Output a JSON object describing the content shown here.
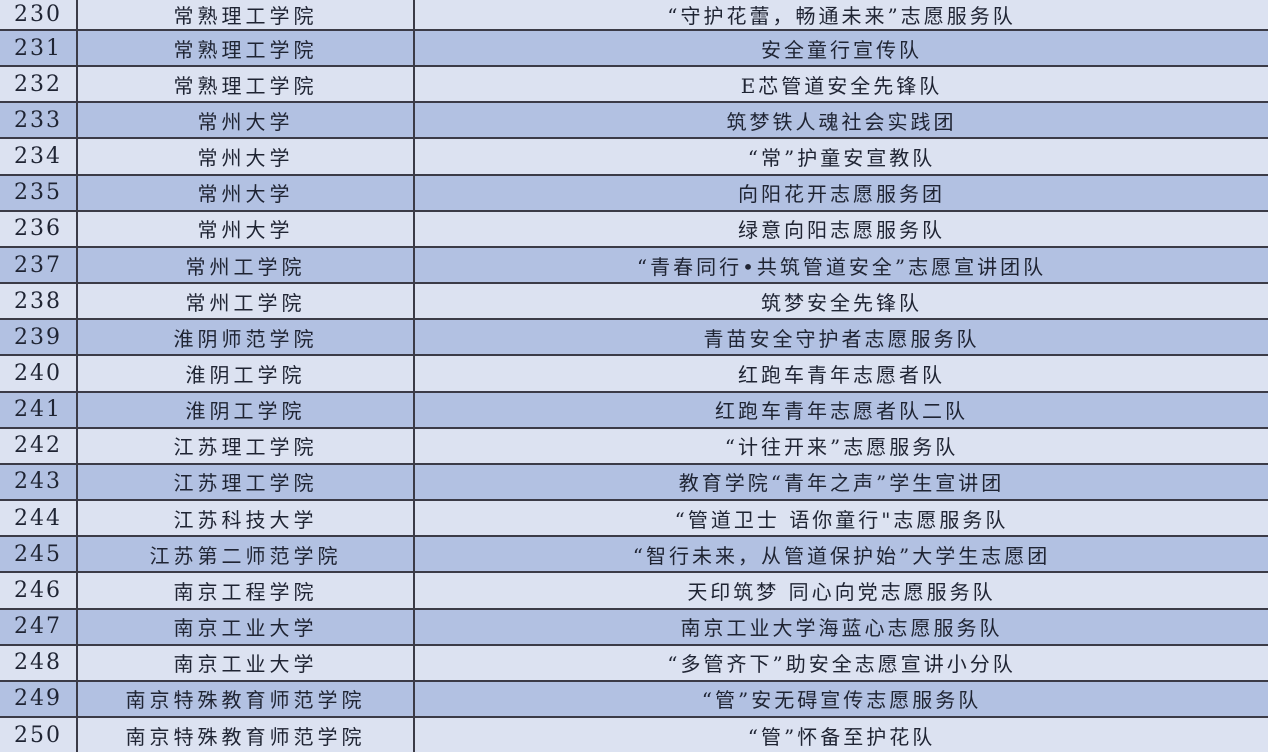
{
  "colors": {
    "row_light": "#dce2f1",
    "row_dark": "#b2c1e2",
    "border": "#3b3b47",
    "text": "#1f2433"
  },
  "table": {
    "rows": [
      {
        "no": "230",
        "school": "常熟理工学院",
        "team": "“守护花蕾，畅通未来”志愿服务队"
      },
      {
        "no": "231",
        "school": "常熟理工学院",
        "team": "安全童行宣传队"
      },
      {
        "no": "232",
        "school": "常熟理工学院",
        "team": "E芯管道安全先锋队"
      },
      {
        "no": "233",
        "school": "常州大学",
        "team": "筑梦铁人魂社会实践团"
      },
      {
        "no": "234",
        "school": "常州大学",
        "team": "“常”护童安宣教队"
      },
      {
        "no": "235",
        "school": "常州大学",
        "team": "向阳花开志愿服务团"
      },
      {
        "no": "236",
        "school": "常州大学",
        "team": "绿意向阳志愿服务队"
      },
      {
        "no": "237",
        "school": "常州工学院",
        "team": "“青春同行•共筑管道安全”志愿宣讲团队"
      },
      {
        "no": "238",
        "school": "常州工学院",
        "team": "筑梦安全先锋队"
      },
      {
        "no": "239",
        "school": "淮阴师范学院",
        "team": "青苗安全守护者志愿服务队"
      },
      {
        "no": "240",
        "school": "淮阴工学院",
        "team": "红跑车青年志愿者队"
      },
      {
        "no": "241",
        "school": "淮阴工学院",
        "team": "红跑车青年志愿者队二队"
      },
      {
        "no": "242",
        "school": "江苏理工学院",
        "team": "“计往开来”志愿服务队"
      },
      {
        "no": "243",
        "school": "江苏理工学院",
        "team": "教育学院“青年之声”学生宣讲团"
      },
      {
        "no": "244",
        "school": "江苏科技大学",
        "team": "“管道卫士 语你童行\"志愿服务队"
      },
      {
        "no": "245",
        "school": "江苏第二师范学院",
        "team": "“智行未来，从管道保护始”大学生志愿团"
      },
      {
        "no": "246",
        "school": "南京工程学院",
        "team": "天印筑梦 同心向党志愿服务队"
      },
      {
        "no": "247",
        "school": "南京工业大学",
        "team": "南京工业大学海蓝心志愿服务队"
      },
      {
        "no": "248",
        "school": "南京工业大学",
        "team": "“多管齐下”助安全志愿宣讲小分队"
      },
      {
        "no": "249",
        "school": "南京特殊教育师范学院",
        "team": "“管”安无碍宣传志愿服务队"
      },
      {
        "no": "250",
        "school": "南京特殊教育师范学院",
        "team": "“管”怀备至护花队"
      }
    ]
  }
}
